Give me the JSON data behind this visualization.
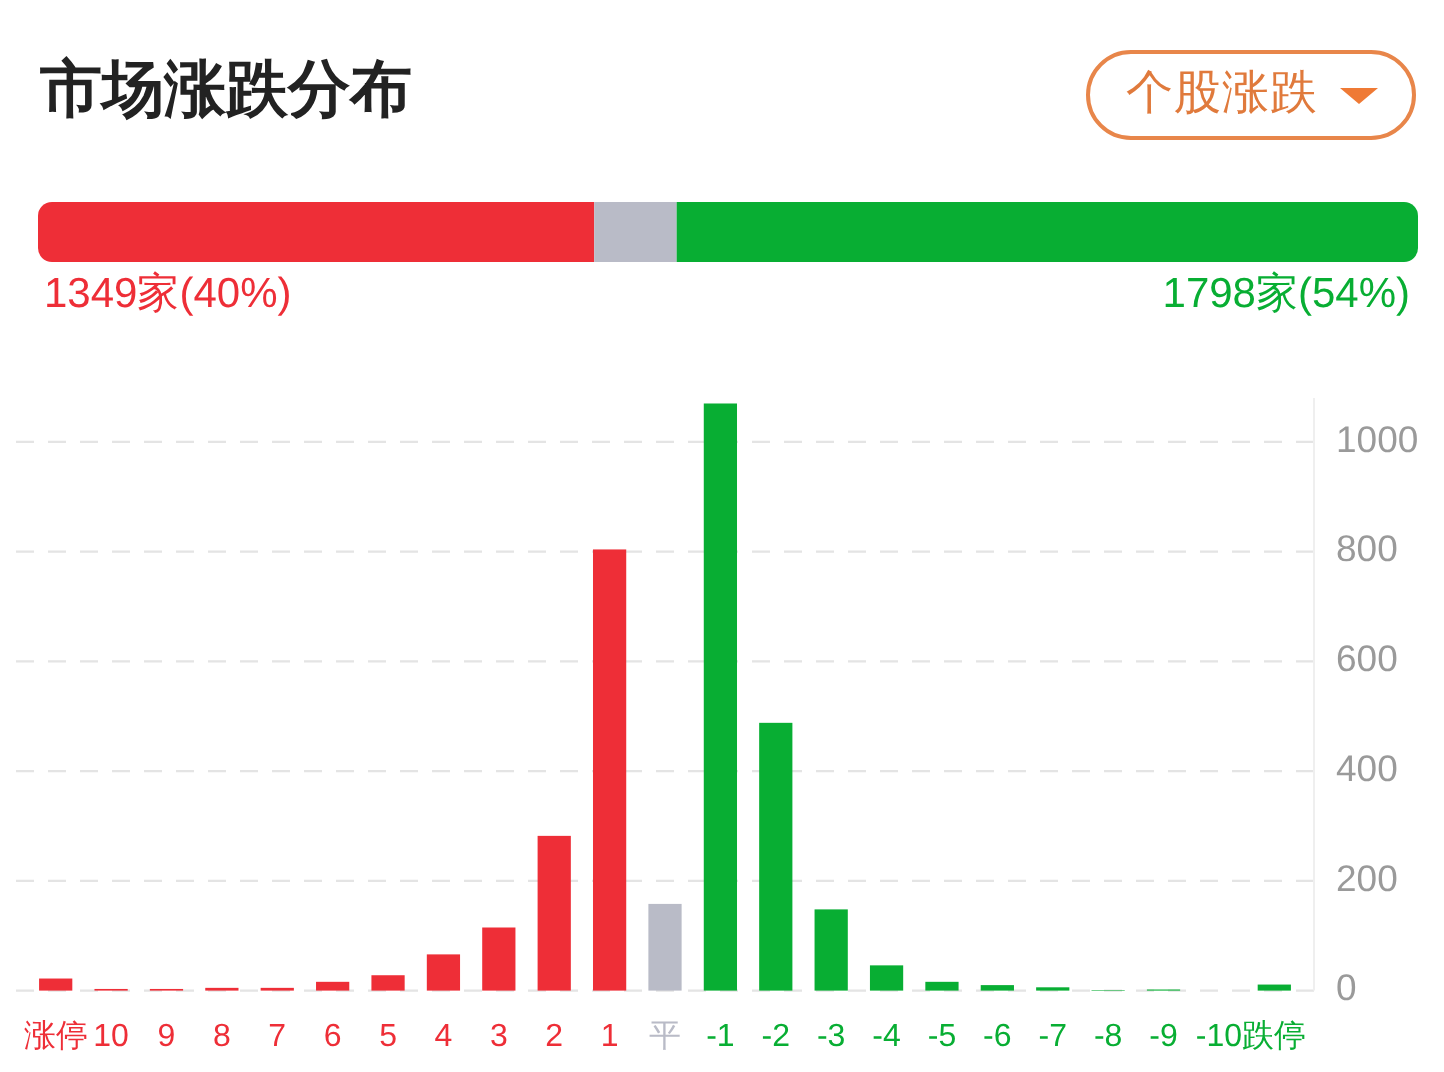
{
  "chart_data": [
    {
      "type": "bar",
      "orientation": "horizontal",
      "stacked": true,
      "title": "市场涨跌分布",
      "annotations": [
        "个股涨跌"
      ],
      "categories": [
        null
      ],
      "series": [
        {
          "color": "#ee2e37",
          "values": [
            1349
          ],
          "value_labels": [
            "1349家(40%)"
          ]
        },
        {
          "color": "#b9bbc7",
          "values": [
            200
          ],
          "value_labels": [
            null
          ]
        },
        {
          "color": "#08ae33",
          "values": [
            1798
          ],
          "value_labels": [
            "1798家(54%)"
          ]
        }
      ]
    },
    {
      "type": "bar",
      "categories": [
        "涨停",
        "10",
        "9",
        "8",
        "7",
        "6",
        "5",
        "4",
        "3",
        "2",
        "1",
        "平",
        "-1",
        "-2",
        "-3",
        "-4",
        "-5",
        "-6",
        "-7",
        "-8",
        "-9",
        "-10",
        "跌停"
      ],
      "values": [
        22,
        3,
        3,
        5,
        5,
        16,
        28,
        66,
        115,
        282,
        804,
        158,
        1070,
        488,
        148,
        46,
        16,
        10,
        6,
        1,
        2,
        0,
        11
      ],
      "colors": [
        "#ee2e37",
        "#ee2e37",
        "#ee2e37",
        "#ee2e37",
        "#ee2e37",
        "#ee2e37",
        "#ee2e37",
        "#ee2e37",
        "#ee2e37",
        "#ee2e37",
        "#ee2e37",
        "#b9bbc7",
        "#08ae33",
        "#08ae33",
        "#08ae33",
        "#08ae33",
        "#08ae33",
        "#08ae33",
        "#08ae33",
        "#08ae33",
        "#08ae33",
        "#08ae33",
        "#08ae33"
      ],
      "ylim": [
        0,
        1080
      ],
      "yticks": [
        0,
        200,
        400,
        600,
        800,
        1000
      ],
      "grid": "y"
    }
  ]
}
